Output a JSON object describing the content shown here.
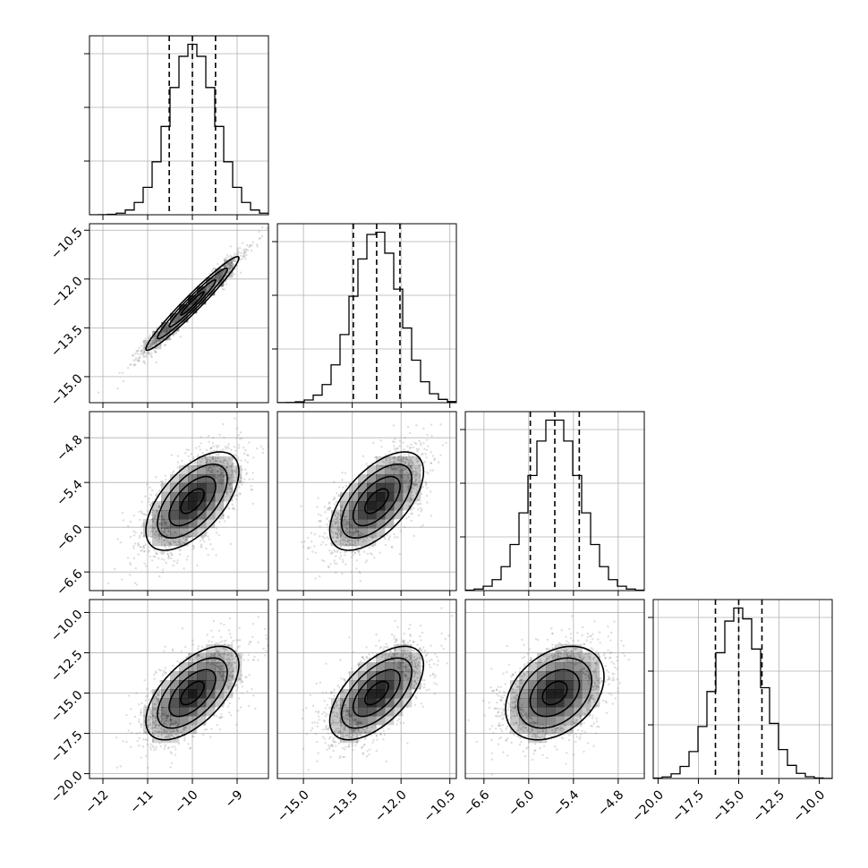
{
  "chart_data": {
    "type": "corner",
    "grid": true,
    "parameters": [
      {
        "mean": -10.0,
        "sd": 0.52,
        "range": [
          -12.3,
          -8.3
        ],
        "ticks": [
          -12,
          -11,
          -10,
          -9
        ],
        "tick_labels": [
          "−12",
          "−11",
          "−10",
          "−9"
        ]
      },
      {
        "mean": -12.75,
        "sd": 0.72,
        "range": [
          -15.8,
          -10.3
        ],
        "ticks": [
          -15.0,
          -13.5,
          -12.0,
          -10.5
        ],
        "tick_labels": [
          "−15.0",
          "−13.5",
          "−12.0",
          "−10.5"
        ]
      },
      {
        "mean": -5.65,
        "sd": 0.33,
        "range": [
          -6.85,
          -4.45
        ],
        "ticks": [
          -6.6,
          -6.0,
          -5.4,
          -4.8
        ],
        "tick_labels": [
          "−6.6",
          "−6.0",
          "−5.4",
          "−4.8"
        ]
      },
      {
        "mean": -15.0,
        "sd": 1.45,
        "range": [
          -20.3,
          -9.2
        ],
        "ticks": [
          -20.0,
          -17.5,
          -15.0,
          -12.5,
          -10.0
        ],
        "tick_labels": [
          "−20.0",
          "−17.5",
          "−15.0",
          "−12.5",
          "−10.0"
        ]
      }
    ],
    "correlations": [
      [
        1.0,
        0.97,
        0.6,
        0.6
      ],
      [
        0.97,
        1.0,
        0.6,
        0.6
      ],
      [
        0.6,
        0.6,
        1.0,
        0.35
      ],
      [
        0.6,
        0.6,
        0.35,
        1.0
      ]
    ],
    "quantiles": [
      0.16,
      0.5,
      0.84
    ],
    "histogram_bins": 20,
    "contour_levels_sigma": [
      0.5,
      1.0,
      1.5,
      2.0
    ],
    "scatter_points_per_panel": 2000
  }
}
